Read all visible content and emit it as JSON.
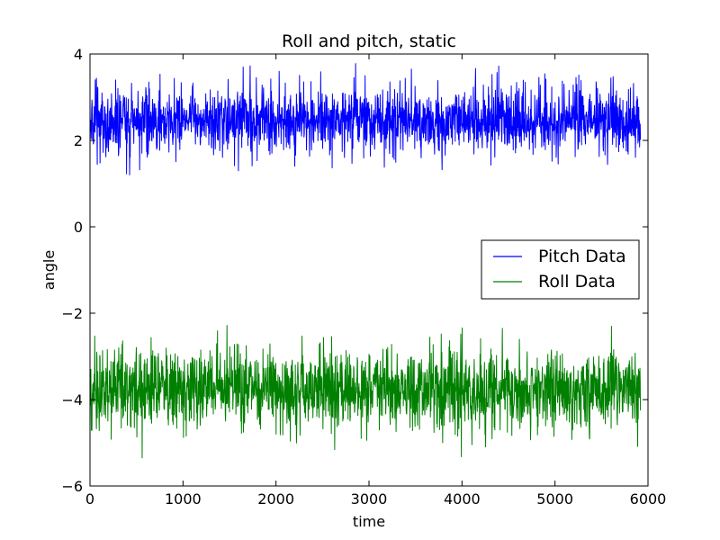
{
  "chart_data": {
    "type": "line",
    "title": "Roll and pitch, static",
    "xlabel": "time",
    "ylabel": "angle",
    "xlim": [
      0,
      6000
    ],
    "ylim": [
      -6,
      4
    ],
    "xticks": [
      0,
      1000,
      2000,
      3000,
      4000,
      5000,
      6000
    ],
    "yticks": [
      -6,
      -4,
      -2,
      0,
      2,
      4
    ],
    "xtick_labels": [
      "0",
      "1000",
      "2000",
      "3000",
      "4000",
      "5000",
      "6000"
    ],
    "ytick_labels": [
      "−6",
      "−4",
      "−2",
      "0",
      "2",
      "4"
    ],
    "grid": false,
    "legend_position": "center-right",
    "n_samples": 5920,
    "series": [
      {
        "name": "Pitch Data",
        "color": "#0000ff",
        "mean": 2.45,
        "typical_range": [
          1.9,
          3.1
        ],
        "min": 1.15,
        "max": 3.95
      },
      {
        "name": "Roll Data",
        "color": "#008000",
        "mean": -3.75,
        "typical_range": [
          -4.4,
          -3.0
        ],
        "min": -5.35,
        "max": -2.2
      }
    ]
  }
}
